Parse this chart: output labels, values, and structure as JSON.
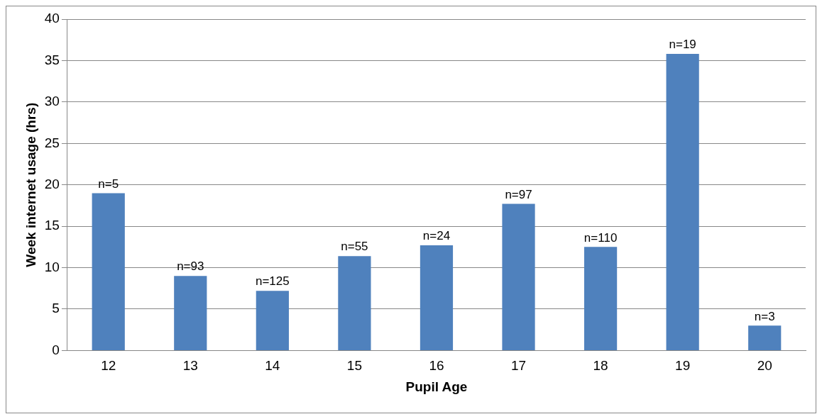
{
  "chart_data": {
    "type": "bar",
    "xlabel": "Pupil Age",
    "ylabel": "Week internet usage (hrs)",
    "categories": [
      "12",
      "13",
      "14",
      "15",
      "16",
      "17",
      "18",
      "19",
      "20"
    ],
    "values": [
      19,
      9,
      7.2,
      11.4,
      12.7,
      17.7,
      12.5,
      35.8,
      3
    ],
    "annotations": [
      {
        "text": "n=5",
        "x": "12",
        "y": 19
      },
      {
        "text": "n=93",
        "x": "13",
        "y": 9
      },
      {
        "text": "n=125",
        "x": "14",
        "y": 7.2
      },
      {
        "text": "n=55",
        "x": "15",
        "y": 11.4
      },
      {
        "text": "n=24",
        "x": "16",
        "y": 12.7
      },
      {
        "text": "n=97",
        "x": "17",
        "y": 17.7
      },
      {
        "text": "n=110",
        "x": "18",
        "y": 12.5
      },
      {
        "text": "n=19",
        "x": "19",
        "y": 35.8
      },
      {
        "text": "n=3",
        "x": "20",
        "y": 3
      }
    ],
    "color": "#4f81bd",
    "ylim": [
      0,
      40
    ],
    "yticks": [
      0,
      5,
      10,
      15,
      20,
      25,
      30,
      35,
      40
    ],
    "grid": "y",
    "legend": false
  }
}
